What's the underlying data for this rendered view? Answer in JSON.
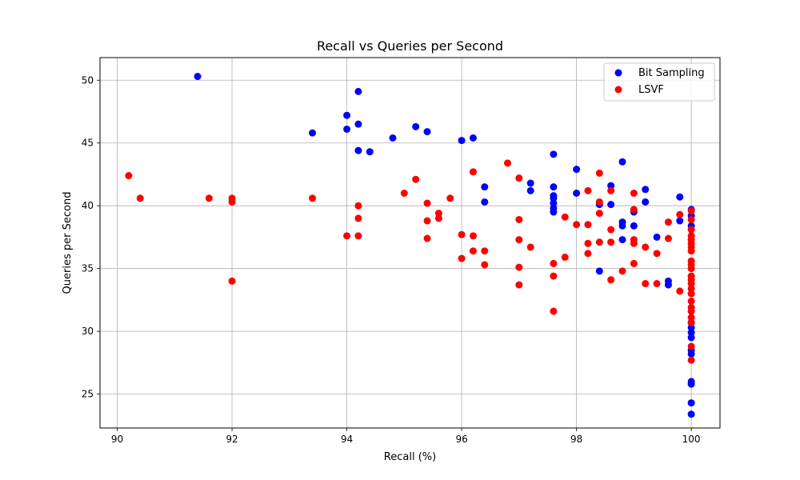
{
  "chart_data": {
    "type": "scatter",
    "title": "Recall vs Queries per Second",
    "xlabel": "Recall (%)",
    "ylabel": "Queries per Second",
    "xlim": [
      89.7,
      100.5
    ],
    "ylim": [
      22.3,
      51.8
    ],
    "xticks": [
      90,
      92,
      94,
      96,
      98,
      100
    ],
    "yticks": [
      25,
      30,
      35,
      40,
      45,
      50
    ],
    "grid": true,
    "legend_position": "top-right",
    "series": [
      {
        "name": "Bit Sampling",
        "color": "#0000ff",
        "points": [
          [
            91.4,
            50.3
          ],
          [
            93.4,
            45.8
          ],
          [
            94.0,
            47.2
          ],
          [
            94.0,
            46.1
          ],
          [
            94.2,
            49.1
          ],
          [
            94.2,
            46.5
          ],
          [
            94.2,
            44.4
          ],
          [
            94.4,
            44.3
          ],
          [
            94.8,
            45.4
          ],
          [
            95.2,
            46.3
          ],
          [
            95.4,
            45.9
          ],
          [
            96.0,
            45.2
          ],
          [
            96.2,
            45.4
          ],
          [
            96.4,
            41.5
          ],
          [
            96.4,
            40.3
          ],
          [
            97.2,
            41.8
          ],
          [
            97.2,
            41.2
          ],
          [
            97.6,
            44.1
          ],
          [
            97.6,
            41.5
          ],
          [
            97.6,
            40.8
          ],
          [
            97.6,
            40.6
          ],
          [
            97.6,
            40.2
          ],
          [
            97.6,
            39.8
          ],
          [
            97.6,
            39.5
          ],
          [
            98.0,
            42.9
          ],
          [
            98.0,
            41.0
          ],
          [
            98.4,
            40.1
          ],
          [
            98.4,
            34.8
          ],
          [
            98.6,
            41.6
          ],
          [
            98.6,
            40.1
          ],
          [
            98.8,
            43.5
          ],
          [
            98.8,
            38.7
          ],
          [
            98.8,
            38.4
          ],
          [
            98.8,
            37.3
          ],
          [
            99.0,
            39.5
          ],
          [
            99.0,
            38.4
          ],
          [
            99.2,
            41.3
          ],
          [
            99.2,
            40.3
          ],
          [
            99.4,
            37.5
          ],
          [
            99.6,
            34.0
          ],
          [
            99.6,
            33.7
          ],
          [
            99.8,
            40.7
          ],
          [
            99.8,
            38.8
          ],
          [
            100.0,
            39.7
          ],
          [
            100.0,
            39.2
          ],
          [
            100.0,
            38.4
          ],
          [
            100.0,
            30.7
          ],
          [
            100.0,
            30.3
          ],
          [
            100.0,
            29.9
          ],
          [
            100.0,
            29.5
          ],
          [
            100.0,
            28.5
          ],
          [
            100.0,
            28.2
          ],
          [
            100.0,
            26.0
          ],
          [
            100.0,
            25.8
          ],
          [
            100.0,
            24.3
          ],
          [
            100.0,
            23.4
          ]
        ]
      },
      {
        "name": "LSVF",
        "color": "#ff0000",
        "points": [
          [
            90.2,
            42.4
          ],
          [
            90.4,
            40.6
          ],
          [
            91.6,
            40.6
          ],
          [
            92.0,
            40.6
          ],
          [
            92.0,
            40.3
          ],
          [
            92.0,
            34.0
          ],
          [
            93.4,
            40.6
          ],
          [
            94.0,
            37.6
          ],
          [
            94.2,
            40.0
          ],
          [
            94.2,
            39.0
          ],
          [
            94.2,
            37.6
          ],
          [
            95.0,
            41.0
          ],
          [
            95.2,
            42.1
          ],
          [
            95.4,
            40.2
          ],
          [
            95.4,
            38.8
          ],
          [
            95.4,
            37.4
          ],
          [
            95.6,
            39.4
          ],
          [
            95.6,
            39.0
          ],
          [
            95.8,
            40.6
          ],
          [
            96.0,
            37.7
          ],
          [
            96.0,
            35.8
          ],
          [
            96.2,
            42.7
          ],
          [
            96.2,
            37.6
          ],
          [
            96.2,
            36.4
          ],
          [
            96.4,
            36.4
          ],
          [
            96.4,
            35.3
          ],
          [
            96.8,
            43.4
          ],
          [
            97.0,
            42.2
          ],
          [
            97.0,
            38.9
          ],
          [
            97.0,
            37.3
          ],
          [
            97.0,
            35.1
          ],
          [
            97.0,
            33.7
          ],
          [
            97.2,
            36.7
          ],
          [
            97.6,
            35.4
          ],
          [
            97.6,
            34.4
          ],
          [
            97.6,
            31.6
          ],
          [
            97.8,
            39.1
          ],
          [
            97.8,
            35.9
          ],
          [
            98.0,
            38.5
          ],
          [
            98.2,
            41.2
          ],
          [
            98.2,
            38.5
          ],
          [
            98.2,
            37.0
          ],
          [
            98.2,
            36.2
          ],
          [
            98.4,
            42.6
          ],
          [
            98.4,
            40.3
          ],
          [
            98.4,
            39.4
          ],
          [
            98.4,
            37.1
          ],
          [
            98.6,
            41.2
          ],
          [
            98.6,
            38.1
          ],
          [
            98.6,
            37.1
          ],
          [
            98.6,
            34.1
          ],
          [
            98.8,
            34.8
          ],
          [
            99.0,
            41.0
          ],
          [
            99.0,
            39.7
          ],
          [
            99.0,
            37.3
          ],
          [
            99.0,
            37.0
          ],
          [
            99.0,
            35.4
          ],
          [
            99.2,
            36.7
          ],
          [
            99.2,
            33.8
          ],
          [
            99.4,
            36.2
          ],
          [
            99.4,
            33.8
          ],
          [
            99.6,
            38.7
          ],
          [
            99.6,
            37.4
          ],
          [
            99.8,
            39.3
          ],
          [
            99.8,
            33.2
          ],
          [
            100.0,
            39.6
          ],
          [
            100.0,
            38.9
          ],
          [
            100.0,
            38.1
          ],
          [
            100.0,
            37.6
          ],
          [
            100.0,
            37.3
          ],
          [
            100.0,
            37.0
          ],
          [
            100.0,
            36.7
          ],
          [
            100.0,
            36.4
          ],
          [
            100.0,
            35.6
          ],
          [
            100.0,
            35.3
          ],
          [
            100.0,
            35.0
          ],
          [
            100.0,
            34.4
          ],
          [
            100.0,
            34.1
          ],
          [
            100.0,
            33.8
          ],
          [
            100.0,
            33.4
          ],
          [
            100.0,
            33.0
          ],
          [
            100.0,
            32.4
          ],
          [
            100.0,
            31.9
          ],
          [
            100.0,
            31.6
          ],
          [
            100.0,
            31.1
          ],
          [
            100.0,
            30.7
          ],
          [
            100.0,
            28.8
          ],
          [
            100.0,
            27.7
          ]
        ]
      }
    ]
  }
}
